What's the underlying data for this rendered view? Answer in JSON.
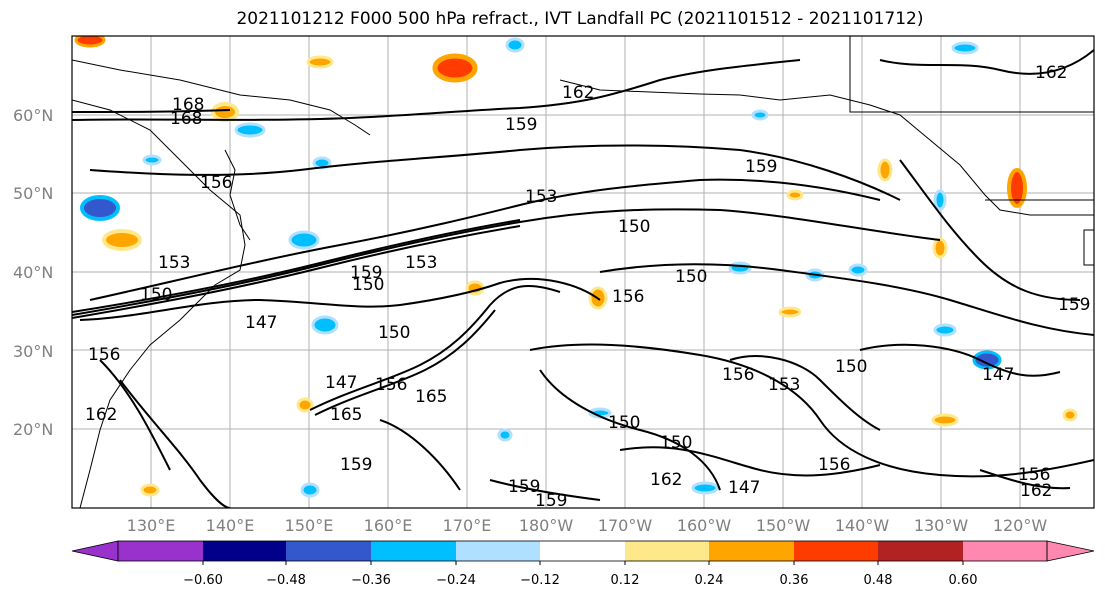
{
  "title": "2021101212 F000 500 hPa refract., IVT Landfall PC (2021101512 - 2021101712)",
  "map": {
    "lat_ticks": [
      "60°N",
      "50°N",
      "40°N",
      "30°N",
      "20°N"
    ],
    "lon_ticks": [
      "130°E",
      "140°E",
      "150°E",
      "160°E",
      "170°E",
      "180°W",
      "170°W",
      "160°W",
      "150°W",
      "140°W",
      "130°W",
      "120°W"
    ],
    "grid": true,
    "contour_labels": [
      "168",
      "168",
      "162",
      "159",
      "156",
      "153",
      "150",
      "153",
      "150",
      "150",
      "159",
      "153",
      "150",
      "147",
      "156",
      "159",
      "150",
      "147",
      "156",
      "165",
      "150",
      "147",
      "150",
      "156",
      "153",
      "150",
      "147",
      "156",
      "159",
      "162",
      "159",
      "162",
      "156",
      "162",
      "159",
      "162",
      "156",
      "159",
      "165"
    ]
  },
  "colorbar": {
    "tick_labels": [
      "−0.60",
      "−0.48",
      "−0.36",
      "−0.24",
      "−0.12",
      "0.12",
      "0.24",
      "0.36",
      "0.48",
      "0.60"
    ],
    "colors": [
      "#9932cc",
      "#00008b",
      "#3357cc",
      "#00bfff",
      "#b0e0ff",
      "#ffffff",
      "#ffe88a",
      "#ffa500",
      "#ff3c00",
      "#b22222",
      "#ff88b0"
    ]
  }
}
